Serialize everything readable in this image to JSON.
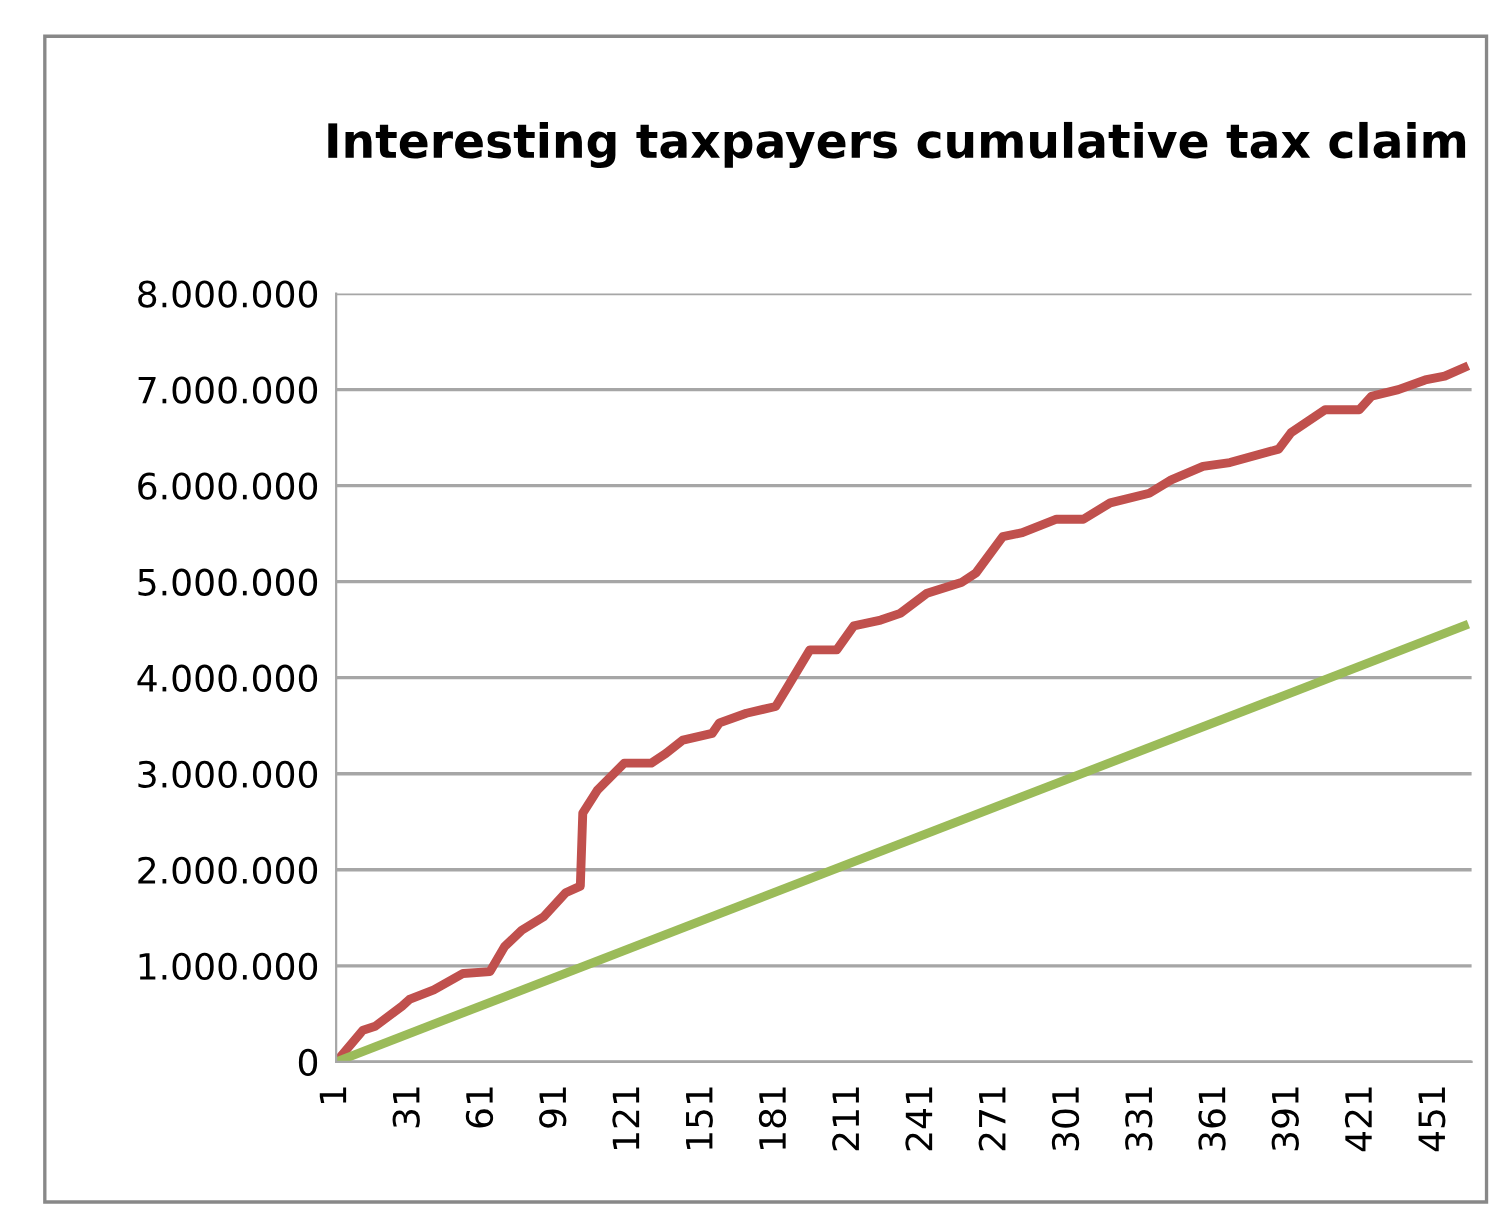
{
  "chart_data": {
    "type": "line",
    "title": "Interesting taxpayers cumulative tax claim",
    "series": [
      {
        "color": "#c0504d",
        "x": [
          1,
          12,
          17,
          28,
          31,
          41,
          53,
          64,
          70,
          77,
          86,
          95,
          101,
          102,
          108,
          119,
          130,
          136,
          143,
          155,
          158,
          169,
          181,
          186,
          195,
          206,
          213,
          224,
          232,
          243,
          257,
          263,
          274,
          282,
          296,
          307,
          318,
          334,
          343,
          356,
          367,
          387,
          392,
          406,
          420,
          425,
          436,
          447,
          455,
          463
        ],
        "values": [
          0,
          330000,
          370000,
          580000,
          650000,
          750000,
          920000,
          940000,
          1200000,
          1370000,
          1510000,
          1760000,
          1830000,
          2590000,
          2830000,
          3110000,
          3110000,
          3210000,
          3350000,
          3420000,
          3530000,
          3630000,
          3700000,
          3910000,
          4290000,
          4290000,
          4540000,
          4600000,
          4670000,
          4880000,
          4990000,
          5090000,
          5470000,
          5510000,
          5650000,
          5650000,
          5820000,
          5920000,
          6060000,
          6200000,
          6240000,
          6380000,
          6550000,
          6790000,
          6790000,
          6930000,
          7000000,
          7100000,
          7140000,
          7230000
        ]
      },
      {
        "color": "#9bbb59",
        "x": [
          1,
          463
        ],
        "values": [
          0,
          4540000
        ]
      }
    ],
    "xlim": [
      1,
      466
    ],
    "xticks": [
      1,
      31,
      61,
      91,
      121,
      151,
      181,
      211,
      241,
      271,
      301,
      331,
      361,
      391,
      421,
      451
    ],
    "ylim": [
      0,
      8000000
    ],
    "yticks": [
      0,
      {
        "value": 1000000,
        "label": "1.000.000"
      },
      {
        "value": 2000000,
        "label": "2.000.000"
      },
      {
        "value": 3000000,
        "label": "3.000.000"
      },
      {
        "value": 4000000,
        "label": "4.000.000"
      },
      {
        "value": 5000000,
        "label": "5.000.000"
      },
      {
        "value": 6000000,
        "label": "6.000.000"
      },
      {
        "value": 7000000,
        "label": "7.000.000"
      },
      {
        "value": 8000000,
        "label": "8.000.000"
      }
    ],
    "grid": "y",
    "marker": "none",
    "line_style": "solid"
  }
}
